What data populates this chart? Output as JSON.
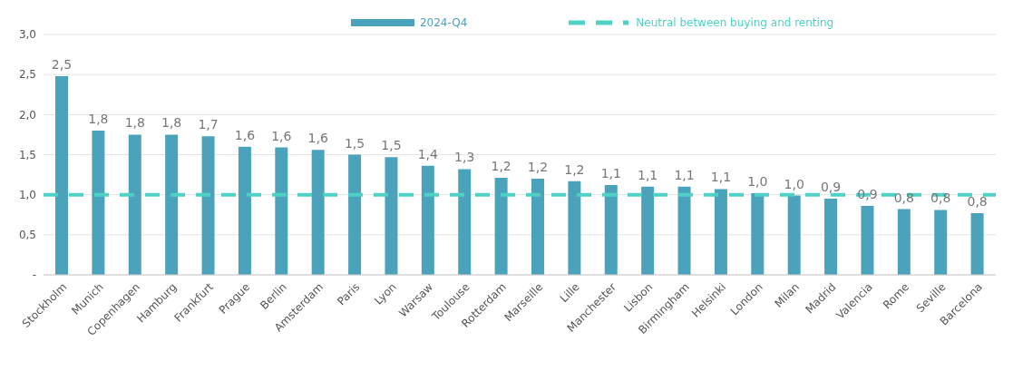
{
  "chart_data": {
    "type": "bar",
    "categories": [
      "Stockholm",
      "Munich",
      "Copenhagen",
      "Hamburg",
      "Frankfurt",
      "Prague",
      "Berlin",
      "Amsterdam",
      "Paris",
      "Lyon",
      "Warsaw",
      "Toulouse",
      "Rotterdam",
      "Marseille",
      "Lille",
      "Manchester",
      "Lisbon",
      "Birmingham",
      "Helsinki",
      "London",
      "Milan",
      "Madrid",
      "Valencia",
      "Rome",
      "Seville",
      "Barcelona"
    ],
    "series": [
      {
        "name": "2024-Q4",
        "color": "#4ba3bb",
        "values": [
          2.48,
          1.8,
          1.75,
          1.75,
          1.73,
          1.6,
          1.59,
          1.56,
          1.5,
          1.47,
          1.36,
          1.32,
          1.21,
          1.2,
          1.17,
          1.12,
          1.1,
          1.1,
          1.07,
          1.02,
          0.99,
          0.95,
          0.86,
          0.82,
          0.81,
          0.77
        ],
        "value_labels": [
          "2,5",
          "1,8",
          "1,8",
          "1,8",
          "1,7",
          "1,6",
          "1,6",
          "1,6",
          "1,5",
          "1,5",
          "1,4",
          "1,3",
          "1,2",
          "1,2",
          "1,2",
          "1,1",
          "1,1",
          "1,1",
          "1,1",
          "1,0",
          "1,0",
          "0,9",
          "0,9",
          "0,8",
          "0,8",
          "0,8"
        ]
      }
    ],
    "ylim": [
      0,
      3
    ],
    "yticks": [
      {
        "value": 0,
        "label": "-"
      },
      {
        "value": 0.5,
        "label": "0,5"
      },
      {
        "value": 1,
        "label": "1,0"
      },
      {
        "value": 1.5,
        "label": "1,5"
      },
      {
        "value": 2,
        "label": "2,0"
      },
      {
        "value": 2.5,
        "label": "2,5"
      },
      {
        "value": 3,
        "label": "3,0"
      }
    ],
    "ref_lines": [
      {
        "axis": "y",
        "value": 1,
        "label": "Neutral between buying and renting",
        "color": "#4fd1c5",
        "line_style": "dashed"
      }
    ],
    "grid": "y",
    "legend": "top"
  }
}
